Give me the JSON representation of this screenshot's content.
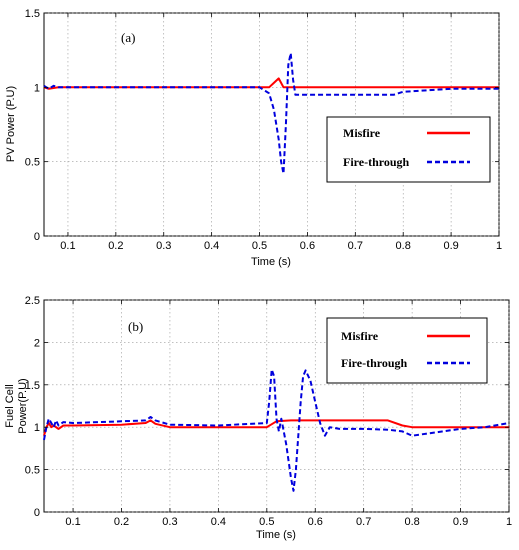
{
  "chart_data": [
    {
      "type": "line",
      "panel_label": "(a)",
      "xlabel": "Time (s)",
      "ylabel": "PV Power (P.U)",
      "xlim": [
        0.05,
        1.0
      ],
      "ylim": [
        0,
        1.5
      ],
      "xticks": [
        0.1,
        0.2,
        0.3,
        0.4,
        0.5,
        0.6,
        0.7,
        0.8,
        0.9,
        1
      ],
      "yticks": [
        0,
        0.5,
        1,
        1.5
      ],
      "xtick_labels": [
        "0.1",
        "0.2",
        "0.3",
        "0.4",
        "0.5",
        "0.6",
        "0.7",
        "0.8",
        "0.9",
        "1"
      ],
      "ytick_labels": [
        "0",
        "0.5",
        "1",
        "1.5"
      ],
      "grid": true,
      "legend_position": "right",
      "series": [
        {
          "name": "Misfire",
          "color": "#ff0000",
          "style": "solid",
          "x": [
            0.05,
            0.06,
            0.08,
            0.15,
            0.3,
            0.45,
            0.5,
            0.52,
            0.53,
            0.54,
            0.55,
            0.56,
            0.6,
            0.7,
            0.8,
            0.9,
            1.0
          ],
          "y": [
            1.0,
            0.99,
            1.0,
            1.0,
            1.0,
            1.0,
            1.0,
            1.0,
            1.03,
            1.06,
            1.0,
            1.0,
            1.0,
            1.0,
            1.0,
            1.0,
            1.0
          ]
        },
        {
          "name": "Fire-through",
          "color": "#0000dd",
          "style": "dashed",
          "x": [
            0.05,
            0.06,
            0.07,
            0.08,
            0.1,
            0.2,
            0.3,
            0.4,
            0.5,
            0.52,
            0.53,
            0.54,
            0.545,
            0.55,
            0.555,
            0.56,
            0.565,
            0.57,
            0.575,
            0.6,
            0.7,
            0.78,
            0.8,
            0.85,
            0.9,
            1.0
          ],
          "y": [
            1.01,
            0.99,
            1.01,
            1.0,
            1.0,
            1.0,
            1.0,
            1.0,
            1.0,
            0.96,
            0.85,
            0.65,
            0.5,
            0.42,
            0.75,
            1.15,
            1.23,
            1.05,
            0.95,
            0.95,
            0.95,
            0.95,
            0.97,
            0.98,
            0.99,
            0.99
          ]
        }
      ]
    },
    {
      "type": "line",
      "panel_label": "(b)",
      "xlabel": "Time (s)",
      "ylabel": "Fuel Cell Power(P.U)",
      "ylabel_lines": [
        "Fuel Cell",
        "Power(P.U)"
      ],
      "xlim": [
        0.04,
        1.0
      ],
      "ylim": [
        0,
        2.5
      ],
      "xticks": [
        0.1,
        0.2,
        0.3,
        0.4,
        0.5,
        0.6,
        0.7,
        0.8,
        0.9,
        1
      ],
      "yticks": [
        0,
        0.5,
        1,
        1.5,
        2,
        2.5
      ],
      "xtick_labels": [
        "0.1",
        "0.2",
        "0.3",
        "0.4",
        "0.5",
        "0.6",
        "0.7",
        "0.8",
        "0.9",
        "1"
      ],
      "ytick_labels": [
        "0",
        "0.5",
        "1",
        "1.5",
        "2",
        "2.5"
      ],
      "grid": true,
      "legend_position": "top-right",
      "series": [
        {
          "name": "Misfire",
          "color": "#ff0000",
          "style": "solid",
          "x": [
            0.04,
            0.045,
            0.05,
            0.055,
            0.06,
            0.07,
            0.08,
            0.1,
            0.2,
            0.25,
            0.26,
            0.27,
            0.3,
            0.4,
            0.5,
            0.52,
            0.55,
            0.6,
            0.7,
            0.75,
            0.78,
            0.8,
            0.9,
            1.0
          ],
          "y": [
            0.9,
            1.0,
            1.05,
            1.0,
            1.02,
            0.98,
            1.02,
            1.02,
            1.03,
            1.05,
            1.08,
            1.04,
            1.0,
            1.0,
            1.0,
            1.07,
            1.08,
            1.08,
            1.08,
            1.08,
            1.02,
            1.0,
            1.0,
            1.0
          ]
        },
        {
          "name": "Fire-through",
          "color": "#0000dd",
          "style": "dashed",
          "x": [
            0.04,
            0.045,
            0.05,
            0.055,
            0.06,
            0.065,
            0.07,
            0.08,
            0.1,
            0.2,
            0.25,
            0.26,
            0.27,
            0.3,
            0.4,
            0.5,
            0.505,
            0.51,
            0.515,
            0.52,
            0.525,
            0.53,
            0.54,
            0.55,
            0.555,
            0.56,
            0.565,
            0.57,
            0.575,
            0.58,
            0.59,
            0.6,
            0.61,
            0.62,
            0.63,
            0.65,
            0.7,
            0.75,
            0.78,
            0.8,
            0.9,
            0.95,
            1.0
          ],
          "y": [
            0.85,
            1.0,
            1.1,
            1.05,
            1.0,
            1.08,
            1.02,
            1.06,
            1.05,
            1.07,
            1.08,
            1.12,
            1.08,
            1.03,
            1.02,
            1.05,
            1.3,
            1.68,
            1.6,
            1.1,
            0.95,
            1.1,
            0.8,
            0.4,
            0.25,
            0.5,
            0.9,
            1.3,
            1.6,
            1.67,
            1.55,
            1.3,
            1.05,
            0.9,
            1.0,
            0.98,
            0.98,
            0.97,
            0.95,
            0.9,
            0.98,
            1.0,
            1.05
          ]
        }
      ]
    }
  ]
}
